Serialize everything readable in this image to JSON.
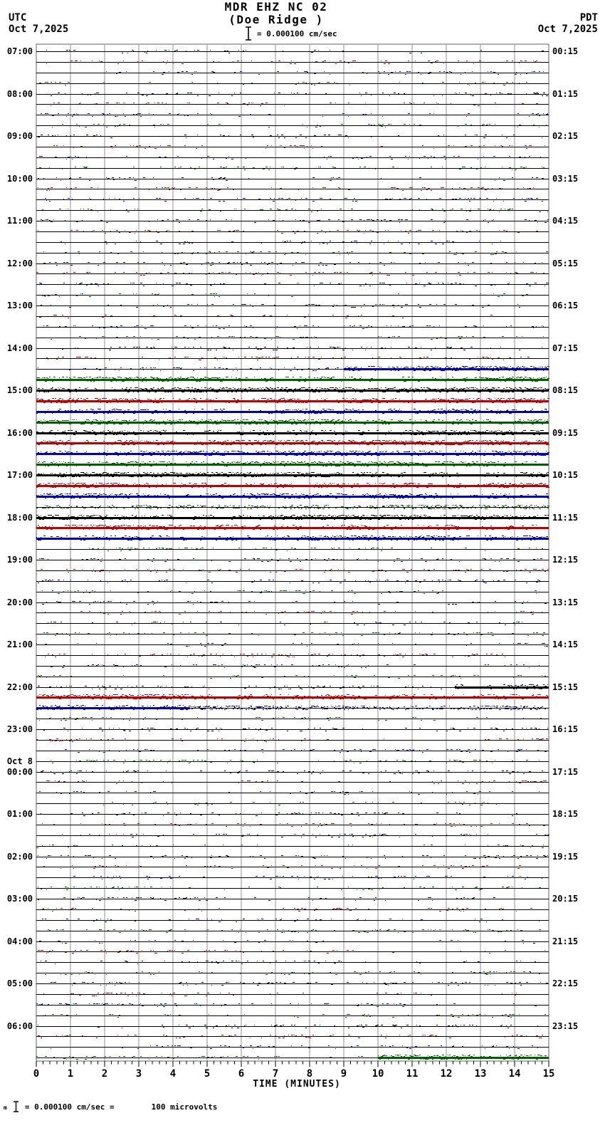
{
  "header": {
    "station_line": "MDR EHZ NC 02",
    "location_line": "(Doe Ridge )",
    "scale_label": "= 0.000100 cm/sec",
    "left_tz": "UTC",
    "left_date": "Oct 7,2025",
    "right_tz": "PDT",
    "right_date": "Oct 7,2025"
  },
  "axis": {
    "title": "TIME (MINUTES)",
    "tick_labels": [
      "0",
      "1",
      "2",
      "3",
      "4",
      "5",
      "6",
      "7",
      "8",
      "9",
      "10",
      "11",
      "12",
      "13",
      "14",
      "15"
    ]
  },
  "footer": {
    "sub_mark": "m",
    "scale_text": "= 0.000100 cm/sec =",
    "equiv_text": "100 microvolts"
  },
  "chart_data": {
    "type": "line",
    "subtype": "helicorder-seismogram",
    "station": "MDR EHZ NC 02",
    "location": "Doe Ridge",
    "scale": "0.000100 cm/sec = 100 microvolts",
    "minutes_per_row": 15,
    "x_range_minutes": [
      0,
      15
    ],
    "grid": "vertical-minute-lines",
    "legend_position": "none",
    "colors": {
      "k": "#000000",
      "r": "#c00000",
      "b": "#0000c0",
      "g": "#006000"
    },
    "grid_color": "#909090",
    "border_color": "#606060",
    "amp_legend": "a: 1=quiet background noise, 2=elevated noise, 3=high-amplitude continuous signal; seg=[startMin,endMin,amp] overrides",
    "rows": [
      {
        "u": "07:00",
        "p": "00:15",
        "c": "k",
        "a": 1
      },
      {
        "c": "r",
        "a": 1
      },
      {
        "c": "b",
        "a": 1
      },
      {
        "c": "g",
        "a": 1
      },
      {
        "u": "08:00",
        "p": "01:15",
        "c": "k",
        "a": 1
      },
      {
        "c": "r",
        "a": 1
      },
      {
        "c": "b",
        "a": 1
      },
      {
        "c": "g",
        "a": 1
      },
      {
        "u": "09:00",
        "p": "02:15",
        "c": "k",
        "a": 1
      },
      {
        "c": "r",
        "a": 1
      },
      {
        "c": "b",
        "a": 1
      },
      {
        "c": "g",
        "a": 1
      },
      {
        "u": "10:00",
        "p": "03:15",
        "c": "k",
        "a": 1
      },
      {
        "c": "r",
        "a": 1
      },
      {
        "c": "b",
        "a": 1
      },
      {
        "c": "g",
        "a": 1
      },
      {
        "u": "11:00",
        "p": "04:15",
        "c": "k",
        "a": 1
      },
      {
        "c": "r",
        "a": 1
      },
      {
        "c": "b",
        "a": 1
      },
      {
        "c": "g",
        "a": 1
      },
      {
        "u": "12:00",
        "p": "05:15",
        "c": "k",
        "a": 1
      },
      {
        "c": "r",
        "a": 1
      },
      {
        "c": "b",
        "a": 1
      },
      {
        "c": "g",
        "a": 1
      },
      {
        "u": "13:00",
        "p": "06:15",
        "c": "k",
        "a": 1
      },
      {
        "c": "r",
        "a": 1
      },
      {
        "c": "b",
        "a": 1
      },
      {
        "c": "g",
        "a": 1
      },
      {
        "u": "14:00",
        "p": "07:15",
        "c": "k",
        "a": 1
      },
      {
        "c": "r",
        "a": 1
      },
      {
        "c": "b",
        "a": 1,
        "seg": [
          [
            9,
            15,
            3
          ]
        ]
      },
      {
        "c": "g",
        "a": 3
      },
      {
        "u": "15:00",
        "p": "08:15",
        "c": "k",
        "a": 3
      },
      {
        "c": "r",
        "a": 3
      },
      {
        "c": "b",
        "a": 3
      },
      {
        "c": "g",
        "a": 3
      },
      {
        "u": "16:00",
        "p": "09:15",
        "c": "k",
        "a": 3
      },
      {
        "c": "r",
        "a": 3
      },
      {
        "c": "b",
        "a": 3
      },
      {
        "c": "g",
        "a": 3
      },
      {
        "u": "17:00",
        "p": "10:15",
        "c": "k",
        "a": 3
      },
      {
        "c": "r",
        "a": 3
      },
      {
        "c": "b",
        "a": 3
      },
      {
        "c": "g",
        "a": 2
      },
      {
        "u": "18:00",
        "p": "11:15",
        "c": "k",
        "a": 3
      },
      {
        "c": "r",
        "a": 3
      },
      {
        "c": "b",
        "a": 3
      },
      {
        "c": "g",
        "a": 1
      },
      {
        "u": "19:00",
        "p": "12:15",
        "c": "k",
        "a": 1
      },
      {
        "c": "r",
        "a": 1
      },
      {
        "c": "b",
        "a": 1
      },
      {
        "c": "g",
        "a": 1
      },
      {
        "u": "20:00",
        "p": "13:15",
        "c": "k",
        "a": 1
      },
      {
        "c": "r",
        "a": 1
      },
      {
        "c": "b",
        "a": 1
      },
      {
        "c": "g",
        "a": 1
      },
      {
        "u": "21:00",
        "p": "14:15",
        "c": "k",
        "a": 1
      },
      {
        "c": "r",
        "a": 1
      },
      {
        "c": "b",
        "a": 1
      },
      {
        "c": "g",
        "a": 1
      },
      {
        "u": "22:00",
        "p": "15:15",
        "c": "k",
        "a": 1,
        "seg": [
          [
            12.2,
            15,
            3
          ]
        ]
      },
      {
        "c": "r",
        "a": 3
      },
      {
        "c": "b",
        "a": 2,
        "seg": [
          [
            0,
            4.3,
            3
          ]
        ]
      },
      {
        "c": "g",
        "a": 1
      },
      {
        "u": "23:00",
        "p": "16:15",
        "c": "k",
        "a": 1
      },
      {
        "c": "r",
        "a": 1
      },
      {
        "c": "b",
        "a": 1
      },
      {
        "c": "g",
        "a": 1
      },
      {
        "u": "00:00",
        "p": "17:15",
        "d": "Oct 8",
        "c": "k",
        "a": 1
      },
      {
        "c": "r",
        "a": 1
      },
      {
        "c": "b",
        "a": 1
      },
      {
        "c": "g",
        "a": 1
      },
      {
        "u": "01:00",
        "p": "18:15",
        "c": "k",
        "a": 1
      },
      {
        "c": "r",
        "a": 1
      },
      {
        "c": "b",
        "a": 1
      },
      {
        "c": "g",
        "a": 1
      },
      {
        "u": "02:00",
        "p": "19:15",
        "c": "k",
        "a": 1
      },
      {
        "c": "r",
        "a": 1
      },
      {
        "c": "b",
        "a": 1
      },
      {
        "c": "g",
        "a": 1
      },
      {
        "u": "03:00",
        "p": "20:15",
        "c": "k",
        "a": 1
      },
      {
        "c": "r",
        "a": 1
      },
      {
        "c": "b",
        "a": 1
      },
      {
        "c": "g",
        "a": 1
      },
      {
        "u": "04:00",
        "p": "21:15",
        "c": "k",
        "a": 1
      },
      {
        "c": "r",
        "a": 1
      },
      {
        "c": "b",
        "a": 1
      },
      {
        "c": "g",
        "a": 1
      },
      {
        "u": "05:00",
        "p": "22:15",
        "c": "k",
        "a": 1
      },
      {
        "c": "r",
        "a": 1
      },
      {
        "c": "b",
        "a": 1
      },
      {
        "c": "g",
        "a": 1
      },
      {
        "u": "06:00",
        "p": "23:15",
        "c": "k",
        "a": 1
      },
      {
        "c": "r",
        "a": 1
      },
      {
        "c": "b",
        "a": 1
      },
      {
        "c": "g",
        "a": 1,
        "seg": [
          [
            10,
            15,
            3
          ]
        ]
      }
    ]
  }
}
